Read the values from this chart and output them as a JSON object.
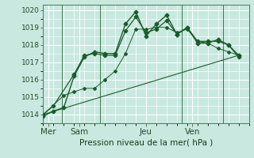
{
  "title": "Pression niveau de la mer( hPa )",
  "bg_color": "#c8e8e0",
  "grid_color": "#ffffff",
  "line_color": "#1a5c2a",
  "ylim": [
    1013.5,
    1020.3
  ],
  "yticks": [
    1014,
    1015,
    1016,
    1017,
    1018,
    1019,
    1020
  ],
  "day_labels": [
    "Mer",
    "Sam",
    "Jeu",
    "Ven"
  ],
  "day_positions": [
    0.5,
    3.5,
    10.0,
    14.5
  ],
  "vline_positions": [
    1.8,
    5.5,
    13.5,
    17.5
  ],
  "xlim": [
    0,
    20
  ],
  "series": [
    {
      "x": [
        0,
        1,
        2,
        3,
        4,
        5,
        6,
        7,
        8,
        9,
        10,
        11,
        12,
        13,
        14,
        15,
        16,
        17,
        18,
        19
      ],
      "y": [
        1013.9,
        1014.2,
        1014.4,
        1016.2,
        1017.3,
        1017.6,
        1017.5,
        1017.5,
        1019.2,
        1019.9,
        1018.5,
        1019.2,
        1019.7,
        1018.6,
        1019.0,
        1018.1,
        1018.1,
        1018.3,
        1018.0,
        1017.4
      ],
      "marker": "D",
      "markersize": 2.5,
      "linewidth": 1.0,
      "use_markers_at": [
        0,
        1,
        3,
        4,
        5,
        8,
        9,
        10,
        11,
        12,
        13,
        14,
        15,
        16,
        17,
        18,
        19
      ]
    },
    {
      "x": [
        0,
        1,
        3,
        4,
        5,
        6,
        7,
        8,
        9,
        10,
        11,
        12,
        13,
        14,
        15,
        16,
        17,
        18,
        19
      ],
      "y": [
        1014.0,
        1014.5,
        1016.3,
        1017.4,
        1017.5,
        1017.4,
        1017.4,
        1018.8,
        1019.6,
        1018.7,
        1018.9,
        1019.4,
        1018.6,
        1019.0,
        1018.2,
        1018.2,
        1018.2,
        1018.0,
        1017.3
      ],
      "marker": "P",
      "markersize": 3.0,
      "linewidth": 0.9,
      "use_markers_at": [
        0,
        1,
        3,
        4,
        8,
        9,
        10,
        11,
        12,
        13,
        14,
        15,
        16,
        17,
        18,
        19
      ]
    },
    {
      "x": [
        0,
        2,
        3,
        4,
        5,
        6,
        7,
        8,
        9,
        10,
        11,
        12,
        13,
        14,
        15,
        16,
        17,
        18,
        19
      ],
      "y": [
        1014.0,
        1015.1,
        1015.3,
        1015.5,
        1015.5,
        1016.0,
        1016.5,
        1017.5,
        1018.9,
        1018.9,
        1019.0,
        1019.0,
        1018.7,
        1018.9,
        1018.2,
        1018.1,
        1017.8,
        1017.6,
        1017.4
      ],
      "marker": "D",
      "markersize": 2.0,
      "linewidth": 0.7,
      "use_markers_at": [
        0,
        2,
        3,
        4,
        5,
        8,
        9,
        10,
        11,
        12,
        13,
        14,
        15,
        16,
        17,
        18,
        19
      ]
    },
    {
      "x": [
        0,
        19
      ],
      "y": [
        1014.0,
        1017.4
      ],
      "marker": null,
      "markersize": 0,
      "linewidth": 0.8,
      "use_markers_at": []
    }
  ],
  "xlabel_fontsize": 7.5,
  "ylabel_fontsize": 6.5,
  "tick_color": "#2a4a2a"
}
